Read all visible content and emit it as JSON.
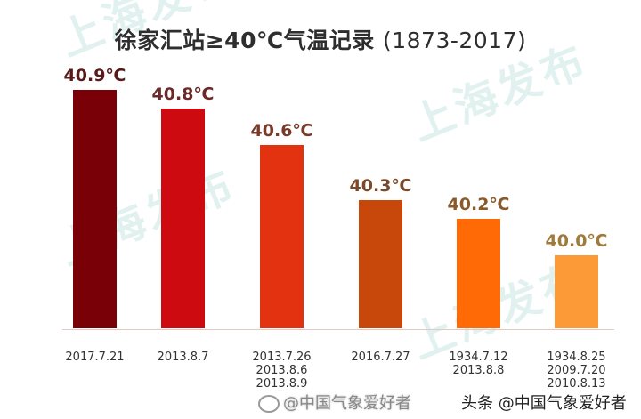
{
  "title": {
    "main": "徐家汇站≥40℃气温记录",
    "years": "(1873-2017)"
  },
  "watermarks": [
    "上海发布",
    "上海发布",
    "上海发布",
    "上海发布"
  ],
  "credits": {
    "weibo": "@中国气象爱好者",
    "toutiao": "头条 @中国气象爱好者"
  },
  "colors": {
    "bars": [
      "#7a0008",
      "#cc0a0f",
      "#e2320f",
      "#c8470b",
      "#ff6a06",
      "#fb9a36"
    ],
    "labels": [
      "#5a1a1a",
      "#6a2a2a",
      "#7a3a2a",
      "#7a4a2a",
      "#8a5a2a",
      "#a07a3a"
    ]
  },
  "chart_data": {
    "type": "bar",
    "title": "徐家汇站≥40℃气温记录 (1873-2017)",
    "xlabel": "",
    "ylabel": "",
    "categories": [
      [
        "2017.7.21"
      ],
      [
        "2013.8.7"
      ],
      [
        "2013.7.26",
        "2013.8.6",
        "2013.8.9"
      ],
      [
        "2016.7.27"
      ],
      [
        "1934.7.12",
        "2013.8.8"
      ],
      [
        "1934.8.25",
        "2009.7.20",
        "2010.8.13"
      ]
    ],
    "values": [
      40.9,
      40.8,
      40.6,
      40.3,
      40.2,
      40.0
    ],
    "value_labels": [
      "40.9℃",
      "40.8℃",
      "40.6℃",
      "40.3℃",
      "40.2℃",
      "40.0℃"
    ],
    "unit": "℃",
    "grid": false,
    "legend": null
  }
}
